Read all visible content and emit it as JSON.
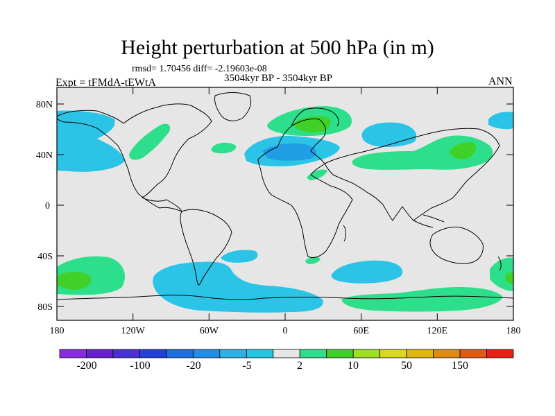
{
  "title": "Height perturbation at 500 hPa (in m)",
  "stats": "rmsd= 1.70456 diff= -2.19603e-08",
  "period": "3504kyr BP - 3504kyr BP",
  "experiment": "Expt = tFMdA-tEWtA",
  "season": "ANN",
  "lat_labels": [
    "80N",
    "40N",
    "0",
    "40S",
    "80S"
  ],
  "lon_labels": [
    "180",
    "120W",
    "60W",
    "0",
    "60E",
    "120E",
    "180"
  ],
  "colorbar": {
    "colors": [
      "#8a2be2",
      "#6a1ed2",
      "#4b2fd6",
      "#2040d8",
      "#1a70e0",
      "#1f8ee6",
      "#2cb0e6",
      "#22c6e0",
      "#e6e6e6",
      "#2ddf8a",
      "#3fd128",
      "#9ee020",
      "#d8d820",
      "#e2b810",
      "#e08a10",
      "#e05a10",
      "#e82010"
    ],
    "labels": [
      "-200",
      "-100",
      "-20",
      "-5",
      "2",
      "10",
      "50",
      "150"
    ]
  },
  "colors": {
    "background": "#e6e6e6",
    "light_blue": "#2cc4e6",
    "mid_blue": "#1f9ee6",
    "light_green": "#2ddf8a",
    "green": "#3fd128"
  }
}
